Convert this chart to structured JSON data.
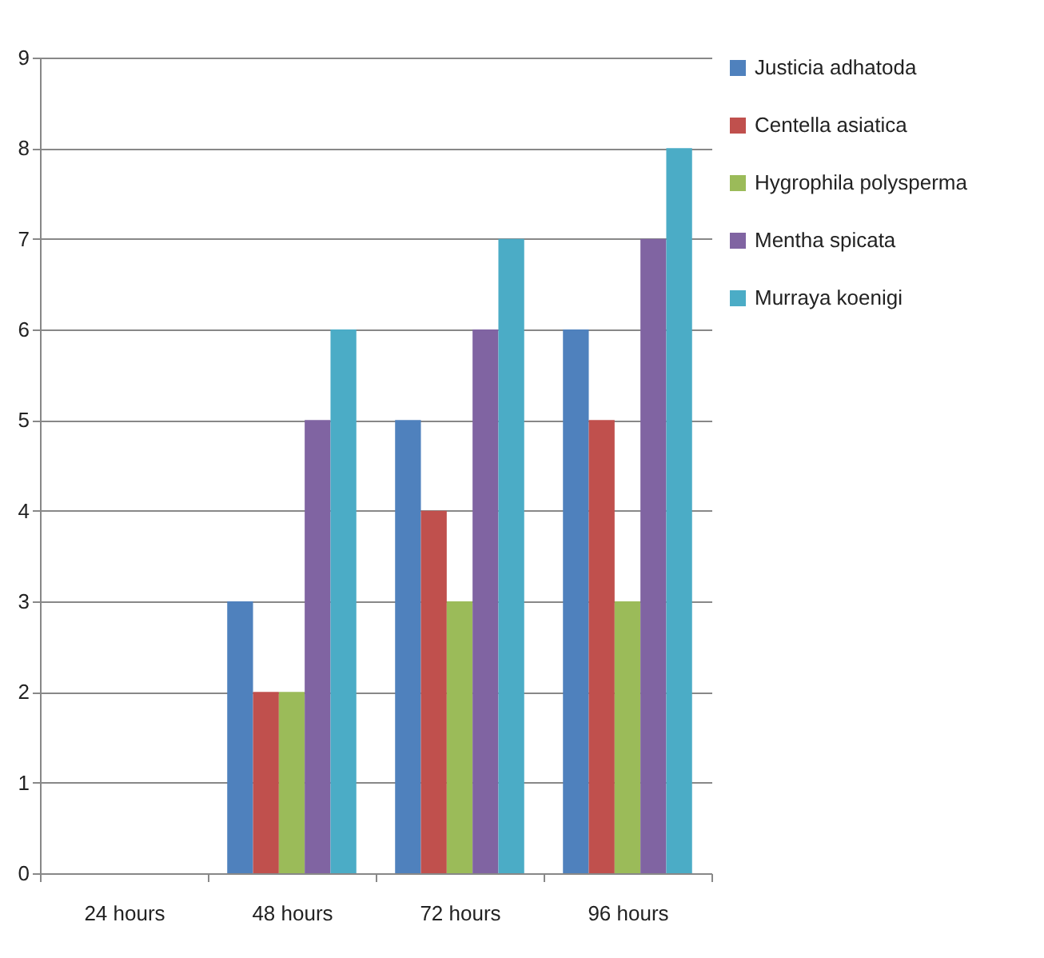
{
  "chart_data": {
    "type": "bar",
    "categories": [
      "24 hours",
      "48 hours",
      "72 hours",
      "96 hours"
    ],
    "series": [
      {
        "name": "Justicia adhatoda",
        "color": "#4f81bd",
        "values": [
          0,
          3,
          5,
          6
        ]
      },
      {
        "name": "Centella asiatica",
        "color": "#c0504d",
        "values": [
          0,
          2,
          4,
          5
        ]
      },
      {
        "name": "Hygrophila polysperma",
        "color": "#9bbb59",
        "values": [
          0,
          2,
          3,
          3
        ]
      },
      {
        "name": "Mentha spicata",
        "color": "#8064a2",
        "values": [
          0,
          5,
          6,
          7
        ]
      },
      {
        "name": "Murraya koenigi",
        "color": "#4bacc6",
        "values": [
          0,
          6,
          7,
          8
        ]
      }
    ],
    "ylim": [
      0,
      9
    ],
    "yticks": [
      0,
      1,
      2,
      3,
      4,
      5,
      6,
      7,
      8,
      9
    ],
    "grid": "y",
    "legend": "right"
  }
}
